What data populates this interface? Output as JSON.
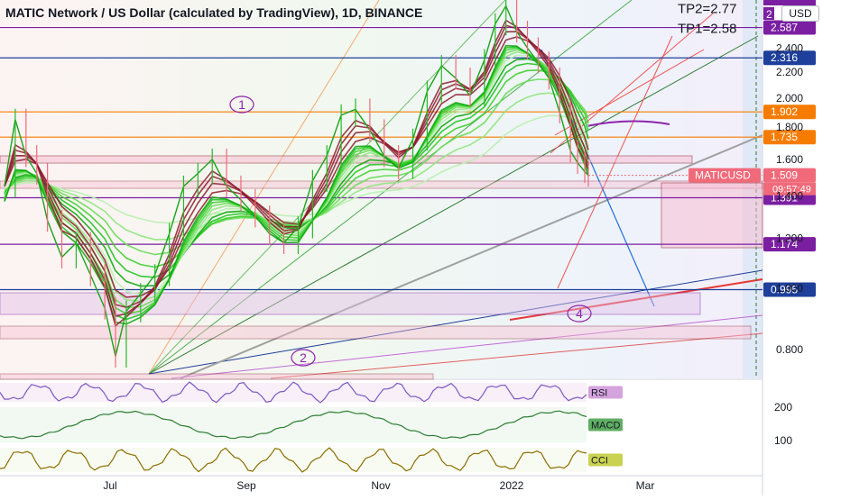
{
  "header": {
    "title": "MATIC Network / US Dollar (calculated by TradingView), 1D, BINANCE",
    "currency": "USD"
  },
  "chart_data": {
    "type": "line",
    "symbol": "MATICUSD",
    "timeframe": "1D",
    "exchange": "BINANCE",
    "x_tick_labels": [
      "Jul",
      "Sep",
      "Nov",
      "2022",
      "Mar"
    ],
    "y_tick_labels": [
      "2.400",
      "2.200",
      "2.000",
      "1.800",
      "1.600",
      "1.400",
      "1.200",
      "1.000",
      "0.800"
    ],
    "ylim": [
      0.72,
      2.86
    ],
    "log_scale": true,
    "grid": false,
    "price_series": [
      {
        "t": 0,
        "v": 1.45
      },
      {
        "t": 3,
        "v": 1.85
      },
      {
        "t": 6,
        "v": 1.62
      },
      {
        "t": 9,
        "v": 1.52
      },
      {
        "t": 12,
        "v": 1.28
      },
      {
        "t": 16,
        "v": 1.12
      },
      {
        "t": 20,
        "v": 1.18
      },
      {
        "t": 24,
        "v": 1.05
      },
      {
        "t": 28,
        "v": 0.93
      },
      {
        "t": 31,
        "v": 0.78
      },
      {
        "t": 34,
        "v": 0.92
      },
      {
        "t": 38,
        "v": 0.98
      },
      {
        "t": 42,
        "v": 1.05
      },
      {
        "t": 46,
        "v": 1.22
      },
      {
        "t": 50,
        "v": 1.45
      },
      {
        "t": 54,
        "v": 1.52
      },
      {
        "t": 58,
        "v": 1.6
      },
      {
        "t": 62,
        "v": 1.45
      },
      {
        "t": 66,
        "v": 1.38
      },
      {
        "t": 70,
        "v": 1.3
      },
      {
        "t": 74,
        "v": 1.22
      },
      {
        "t": 78,
        "v": 1.18
      },
      {
        "t": 82,
        "v": 1.25
      },
      {
        "t": 86,
        "v": 1.48
      },
      {
        "t": 90,
        "v": 1.62
      },
      {
        "t": 94,
        "v": 1.88
      },
      {
        "t": 98,
        "v": 1.92
      },
      {
        "t": 102,
        "v": 1.78
      },
      {
        "t": 106,
        "v": 1.62
      },
      {
        "t": 110,
        "v": 1.55
      },
      {
        "t": 114,
        "v": 1.72
      },
      {
        "t": 118,
        "v": 2.05
      },
      {
        "t": 122,
        "v": 2.25
      },
      {
        "t": 126,
        "v": 2.15
      },
      {
        "t": 130,
        "v": 2.02
      },
      {
        "t": 134,
        "v": 2.3
      },
      {
        "t": 137,
        "v": 2.62
      },
      {
        "t": 140,
        "v": 2.8
      },
      {
        "t": 143,
        "v": 2.55
      },
      {
        "t": 146,
        "v": 2.4
      },
      {
        "t": 149,
        "v": 2.28
      },
      {
        "t": 152,
        "v": 2.15
      },
      {
        "t": 155,
        "v": 1.9
      },
      {
        "t": 158,
        "v": 1.65
      },
      {
        "t": 160,
        "v": 1.58
      },
      {
        "t": 162,
        "v": 1.53
      },
      {
        "t": 163,
        "v": 1.509
      }
    ],
    "horizontal_levels": [
      {
        "label": "2.587",
        "value": 2.587,
        "color": "#7b1fa2"
      },
      {
        "label": "2.316",
        "value": 2.316,
        "color": "#1e3f9a"
      },
      {
        "label": "1.902",
        "value": 1.902,
        "color": "#f57c00"
      },
      {
        "label": "1.735",
        "value": 1.735,
        "color": "#f57c00"
      },
      {
        "label": "1.509",
        "value": 1.509,
        "color": "#f06a7a"
      },
      {
        "label": "1.391",
        "value": 1.391,
        "color": "#7b1fa2"
      },
      {
        "label": "1.174",
        "value": 1.174,
        "color": "#7b1fa2"
      },
      {
        "label": "0.995",
        "value": 0.995,
        "color": "#1e3f9a"
      }
    ],
    "annotations": [
      {
        "text": "TP2=2.77",
        "value": 2.77
      },
      {
        "text": "TP1=2.58",
        "value": 2.58
      },
      {
        "text": "1"
      },
      {
        "text": "2"
      },
      {
        "text": "4"
      }
    ],
    "current_price": {
      "symbol": "MATICUSD",
      "value": "1.509",
      "countdown": "09:57:49"
    },
    "top_cut_label": "2",
    "indicators": [
      {
        "name": "RSI",
        "y_tick_labels": []
      },
      {
        "name": "MACD",
        "y_tick_labels": [
          "200",
          "100"
        ]
      },
      {
        "name": "CCI",
        "y_tick_labels": []
      }
    ]
  },
  "colors": {
    "accent_purple": "#7b1fa2",
    "accent_blue": "#1e3f9a",
    "accent_orange": "#f57c00",
    "price_red": "#f06a7a",
    "ribbon_green": "#22c522",
    "ribbon_dark_red": "#8b1a2b"
  }
}
